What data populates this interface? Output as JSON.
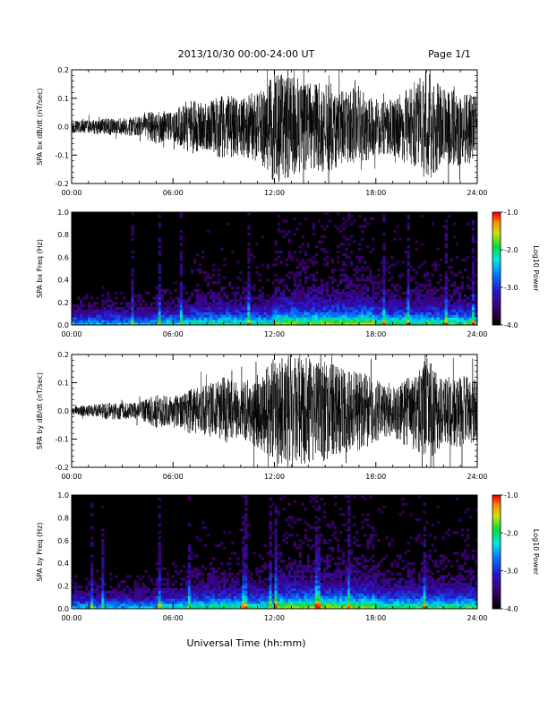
{
  "header": {
    "title": "2013/10/30  00:00-24:00 UT",
    "page": "Page 1/1"
  },
  "footer": {
    "xlabel": "Universal Time (hh:mm)"
  },
  "chart_data": [
    {
      "type": "line",
      "ylabel": "SPA bx dB/dt (nT/sec)",
      "xlim_hours": [
        0,
        24
      ],
      "xticks": [
        "00:00",
        "06:00",
        "12:00",
        "18:00",
        "24:00"
      ],
      "ylim": [
        -0.2,
        0.2
      ],
      "yticks": [
        "-0.2",
        "-0.1",
        "0.0",
        "0.1",
        "0.2"
      ],
      "envelope_hours": [
        0,
        1,
        2,
        3,
        4,
        5,
        6,
        7,
        8,
        9,
        10,
        11,
        12,
        13,
        14,
        15,
        16,
        17,
        18,
        19,
        20,
        21,
        22,
        23,
        24
      ],
      "envelope_amplitude": [
        0.02,
        0.025,
        0.03,
        0.03,
        0.035,
        0.06,
        0.05,
        0.1,
        0.08,
        0.12,
        0.1,
        0.13,
        0.2,
        0.18,
        0.15,
        0.17,
        0.13,
        0.14,
        0.1,
        0.1,
        0.14,
        0.2,
        0.13,
        0.14,
        0.12
      ]
    },
    {
      "type": "heatmap",
      "ylabel": "SPA bx Freq (Hz)",
      "xlim_hours": [
        0,
        24
      ],
      "xticks": [
        "00:00",
        "06:00",
        "12:00",
        "18:00",
        "24:00"
      ],
      "ylim": [
        0,
        1
      ],
      "yticks": [
        "0.0",
        "0.2",
        "0.4",
        "0.6",
        "0.8",
        "1.0"
      ],
      "colorbar": {
        "label": "Log10 Power",
        "range": [
          -4.0,
          -1.0
        ],
        "ticks": [
          "-1.0",
          "-2.0",
          "-3.0",
          "-4.0"
        ]
      }
    },
    {
      "type": "line",
      "ylabel": "SPA by dB/dt (nT/sec)",
      "xlim_hours": [
        0,
        24
      ],
      "xticks": [
        "00:00",
        "06:00",
        "12:00",
        "18:00",
        "24:00"
      ],
      "ylim": [
        -0.2,
        0.2
      ],
      "yticks": [
        "-0.2",
        "-0.1",
        "0.0",
        "0.1",
        "0.2"
      ],
      "envelope_hours": [
        0,
        1,
        2,
        3,
        4,
        5,
        6,
        7,
        8,
        9,
        10,
        11,
        12,
        13,
        14,
        15,
        16,
        17,
        18,
        19,
        20,
        21,
        22,
        23,
        24
      ],
      "envelope_amplitude": [
        0.015,
        0.02,
        0.03,
        0.03,
        0.03,
        0.06,
        0.05,
        0.08,
        0.09,
        0.12,
        0.1,
        0.13,
        0.19,
        0.2,
        0.19,
        0.18,
        0.15,
        0.15,
        0.11,
        0.1,
        0.13,
        0.19,
        0.12,
        0.13,
        0.11
      ]
    },
    {
      "type": "heatmap",
      "ylabel": "SPA by Freq (Hz)",
      "xlim_hours": [
        0,
        24
      ],
      "xticks": [
        "00:00",
        "06:00",
        "12:00",
        "18:00",
        "24:00"
      ],
      "ylim": [
        0,
        1
      ],
      "yticks": [
        "0.0",
        "0.2",
        "0.4",
        "0.6",
        "0.8",
        "1.0"
      ],
      "colorbar": {
        "label": "Log10 Power",
        "range": [
          -4.0,
          -1.0
        ],
        "ticks": [
          "-1.0",
          "-2.0",
          "-3.0",
          "-4.0"
        ]
      }
    }
  ]
}
